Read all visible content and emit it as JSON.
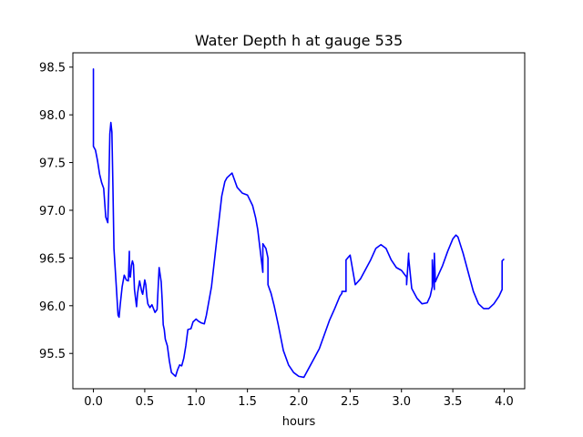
{
  "chart_data": {
    "type": "line",
    "title": "Water Depth h at gauge 535",
    "xlabel": "hours",
    "ylabel": "",
    "xlim": [
      -0.2,
      4.2
    ],
    "ylim": [
      95.13,
      98.65
    ],
    "xticks": [
      0.0,
      0.5,
      1.0,
      1.5,
      2.0,
      2.5,
      3.0,
      3.5,
      4.0
    ],
    "xtick_labels": [
      "0.0",
      "0.5",
      "1.0",
      "1.5",
      "2.0",
      "2.5",
      "3.0",
      "3.5",
      "4.0"
    ],
    "yticks": [
      95.5,
      96.0,
      96.5,
      97.0,
      97.5,
      98.0,
      98.5
    ],
    "ytick_labels": [
      "95.5",
      "96.0",
      "96.5",
      "97.0",
      "97.5",
      "98.0",
      "98.5"
    ],
    "grid": false,
    "series": [
      {
        "color": "#0000ff",
        "x": [
          0.0,
          0.0,
          0.0,
          0.0,
          0.02,
          0.04,
          0.06,
          0.08,
          0.1,
          0.12,
          0.14,
          0.15,
          0.16,
          0.17,
          0.18,
          0.19,
          0.2,
          0.22,
          0.24,
          0.25,
          0.26,
          0.28,
          0.3,
          0.32,
          0.34,
          0.35,
          0.35,
          0.36,
          0.37,
          0.38,
          0.39,
          0.4,
          0.42,
          0.43,
          0.45,
          0.47,
          0.48,
          0.5,
          0.51,
          0.52,
          0.53,
          0.55,
          0.57,
          0.6,
          0.62,
          0.64,
          0.66,
          0.67,
          0.68,
          0.69,
          0.7,
          0.72,
          0.74,
          0.76,
          0.78,
          0.8,
          0.82,
          0.84,
          0.86,
          0.88,
          0.9,
          0.92,
          0.95,
          0.97,
          1.0,
          1.02,
          1.05,
          1.08,
          1.1,
          1.15,
          1.2,
          1.25,
          1.28,
          1.3,
          1.35,
          1.4,
          1.45,
          1.5,
          1.55,
          1.58,
          1.6,
          1.62,
          1.65,
          1.65,
          1.68,
          1.7,
          1.7,
          1.73,
          1.76,
          1.8,
          1.85,
          1.9,
          1.95,
          2.0,
          2.05,
          2.1,
          2.15,
          2.2,
          2.25,
          2.3,
          2.35,
          2.4,
          2.42,
          2.42,
          2.46,
          2.46,
          2.46,
          2.5,
          2.55,
          2.6,
          2.65,
          2.7,
          2.75,
          2.8,
          2.85,
          2.9,
          2.95,
          3.0,
          3.05,
          3.05,
          3.07,
          3.07,
          3.1,
          3.15,
          3.2,
          3.25,
          3.28,
          3.3,
          3.3,
          3.32,
          3.32,
          3.33,
          3.35,
          3.4,
          3.45,
          3.5,
          3.53,
          3.55,
          3.6,
          3.65,
          3.7,
          3.75,
          3.8,
          3.85,
          3.9,
          3.95,
          3.98,
          3.98,
          4.0
        ],
        "y": [
          97.98,
          98.48,
          97.98,
          97.67,
          97.63,
          97.52,
          97.38,
          97.29,
          97.23,
          96.93,
          96.87,
          97.25,
          97.8,
          97.92,
          97.82,
          97.25,
          96.6,
          96.25,
          95.9,
          95.88,
          96.0,
          96.2,
          96.32,
          96.27,
          96.26,
          96.57,
          96.32,
          96.3,
          96.42,
          96.47,
          96.43,
          96.17,
          95.99,
          96.13,
          96.26,
          96.15,
          96.12,
          96.27,
          96.22,
          96.1,
          96.02,
          95.98,
          96.01,
          95.93,
          95.96,
          96.4,
          96.25,
          96.05,
          95.8,
          95.75,
          95.65,
          95.58,
          95.42,
          95.3,
          95.28,
          95.26,
          95.33,
          95.38,
          95.37,
          95.45,
          95.58,
          95.75,
          95.76,
          95.83,
          95.86,
          95.84,
          95.82,
          95.81,
          95.9,
          96.2,
          96.68,
          97.15,
          97.3,
          97.34,
          97.39,
          97.24,
          97.18,
          97.16,
          97.05,
          96.92,
          96.8,
          96.62,
          96.35,
          96.65,
          96.6,
          96.5,
          96.22,
          96.13,
          96.0,
          95.8,
          95.53,
          95.38,
          95.3,
          95.26,
          95.25,
          95.35,
          95.45,
          95.55,
          95.7,
          95.85,
          95.97,
          96.1,
          96.13,
          96.15,
          96.15,
          96.48,
          96.48,
          96.53,
          96.22,
          96.28,
          96.38,
          96.48,
          96.6,
          96.64,
          96.6,
          96.48,
          96.4,
          96.37,
          96.3,
          96.22,
          96.55,
          96.5,
          96.18,
          96.08,
          96.02,
          96.03,
          96.1,
          96.2,
          96.48,
          96.17,
          96.55,
          96.25,
          96.3,
          96.42,
          96.57,
          96.7,
          96.74,
          96.72,
          96.55,
          96.35,
          96.15,
          96.02,
          95.97,
          95.97,
          96.02,
          96.1,
          96.17,
          96.47,
          96.49
        ]
      }
    ]
  }
}
